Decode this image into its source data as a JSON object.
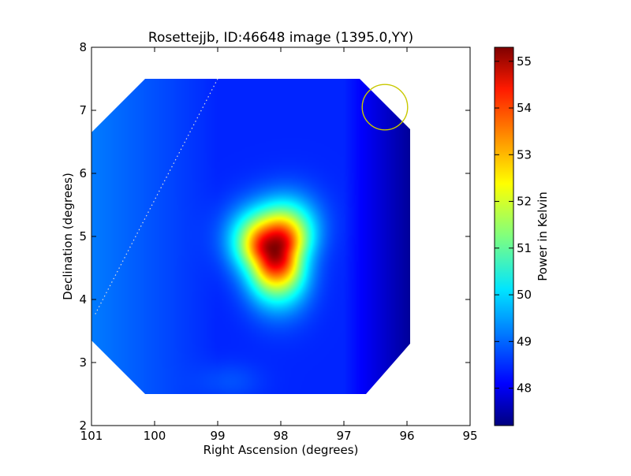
{
  "chart_data": {
    "type": "heatmap",
    "title": "Rosettejjb, ID:46648 image (1395.0,YY)",
    "xlabel": "Right Ascension (degrees)",
    "ylabel": "Declination (degrees)",
    "xlim": [
      101,
      95
    ],
    "ylim": [
      2,
      8
    ],
    "x_ticks": [
      101,
      100,
      99,
      98,
      97,
      96,
      95
    ],
    "y_ticks": [
      2,
      3,
      4,
      5,
      6,
      7,
      8
    ],
    "colorbar": {
      "label": "Power in Kelvin",
      "range": [
        47.2,
        55.3
      ],
      "ticks": [
        48,
        49,
        50,
        51,
        52,
        53,
        54,
        55
      ],
      "colormap": "jet"
    },
    "background_level": 48.5,
    "peak": {
      "ra": 98.1,
      "dec": 4.8,
      "value": 55.3
    },
    "circle_marker": {
      "ra": 96.35,
      "dec": 7.05,
      "radius_deg": 0.36,
      "color": "#c8c800"
    },
    "dotted_line": {
      "from": [
        99.0,
        7.5
      ],
      "to": [
        100.95,
        3.75
      ],
      "color": "#dddddd"
    }
  }
}
